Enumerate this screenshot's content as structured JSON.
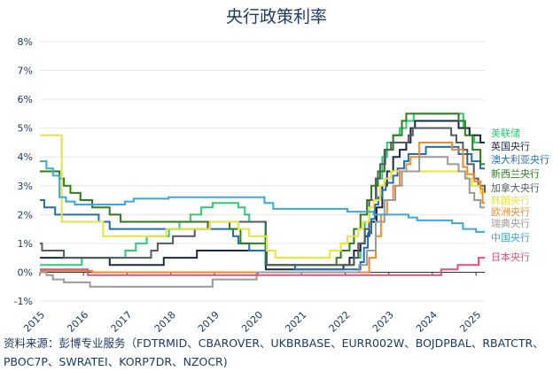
{
  "chart_data": {
    "type": "line",
    "title": "央行政策利率",
    "xlabel": "",
    "ylabel": "",
    "xlim": [
      2015,
      2025.2
    ],
    "ylim": [
      -1,
      8
    ],
    "yticks": [
      "-1%",
      "0%",
      "1%",
      "2%",
      "3%",
      "4%",
      "5%",
      "6%",
      "7%",
      "8%"
    ],
    "ytick_values": [
      -1,
      0,
      1,
      2,
      3,
      4,
      5,
      6,
      7,
      8
    ],
    "xticks": [
      "2015",
      "2016",
      "2017",
      "2018",
      "2019",
      "2020",
      "2021",
      "2022",
      "2023",
      "2024",
      "2025"
    ],
    "grid": true,
    "legend_position": "right",
    "series": [
      {
        "name": "美联储",
        "color": "#2ecc71",
        "points": [
          [
            2015,
            0.25
          ],
          [
            2015.96,
            0.5
          ],
          [
            2016.96,
            0.75
          ],
          [
            2017.2,
            1.0
          ],
          [
            2017.45,
            1.25
          ],
          [
            2017.96,
            1.5
          ],
          [
            2018.2,
            1.75
          ],
          [
            2018.45,
            2.0
          ],
          [
            2018.7,
            2.25
          ],
          [
            2018.96,
            2.4
          ],
          [
            2019.55,
            2.25
          ],
          [
            2019.7,
            2.0
          ],
          [
            2019.8,
            1.75
          ],
          [
            2020.17,
            0.25
          ],
          [
            2022.2,
            0.5
          ],
          [
            2022.35,
            1.0
          ],
          [
            2022.45,
            1.75
          ],
          [
            2022.55,
            2.5
          ],
          [
            2022.72,
            3.25
          ],
          [
            2022.85,
            4.0
          ],
          [
            2022.96,
            4.5
          ],
          [
            2023.1,
            4.75
          ],
          [
            2023.25,
            5.0
          ],
          [
            2023.4,
            5.25
          ],
          [
            2023.57,
            5.5
          ],
          [
            2024.71,
            5.0
          ],
          [
            2024.85,
            4.75
          ],
          [
            2024.96,
            4.5
          ]
        ]
      },
      {
        "name": "英国央行",
        "color": "#1a2a44",
        "points": [
          [
            2015,
            0.5
          ],
          [
            2016.6,
            0.25
          ],
          [
            2017.84,
            0.5
          ],
          [
            2018.6,
            0.75
          ],
          [
            2020.18,
            0.1
          ],
          [
            2021.96,
            0.25
          ],
          [
            2022.1,
            0.5
          ],
          [
            2022.2,
            0.75
          ],
          [
            2022.35,
            1.0
          ],
          [
            2022.45,
            1.25
          ],
          [
            2022.55,
            1.75
          ],
          [
            2022.72,
            2.25
          ],
          [
            2022.85,
            3.0
          ],
          [
            2022.96,
            3.5
          ],
          [
            2023.1,
            4.0
          ],
          [
            2023.25,
            4.25
          ],
          [
            2023.4,
            4.5
          ],
          [
            2023.5,
            5.0
          ],
          [
            2023.6,
            5.25
          ],
          [
            2024.6,
            5.0
          ],
          [
            2024.85,
            4.75
          ],
          [
            2025.1,
            4.5
          ]
        ]
      },
      {
        "name": "澳大利亚央行",
        "color": "#1f6fb5",
        "points": [
          [
            2015,
            2.5
          ],
          [
            2015.1,
            2.25
          ],
          [
            2015.35,
            2.0
          ],
          [
            2016.35,
            1.75
          ],
          [
            2016.6,
            1.5
          ],
          [
            2019.43,
            1.25
          ],
          [
            2019.55,
            1.0
          ],
          [
            2019.8,
            0.75
          ],
          [
            2020.2,
            0.25
          ],
          [
            2020.85,
            0.1
          ],
          [
            2022.35,
            0.35
          ],
          [
            2022.43,
            0.85
          ],
          [
            2022.52,
            1.35
          ],
          [
            2022.6,
            1.85
          ],
          [
            2022.68,
            2.35
          ],
          [
            2022.76,
            2.6
          ],
          [
            2022.85,
            2.85
          ],
          [
            2022.93,
            3.1
          ],
          [
            2023.1,
            3.35
          ],
          [
            2023.2,
            3.6
          ],
          [
            2023.35,
            3.85
          ],
          [
            2023.45,
            4.1
          ],
          [
            2023.85,
            4.35
          ],
          [
            2024.6,
            4.1
          ],
          [
            2024.9,
            3.85
          ],
          [
            2025.1,
            3.6
          ]
        ]
      },
      {
        "name": "新西兰央行",
        "color": "#2e7d1a",
        "points": [
          [
            2015,
            3.5
          ],
          [
            2015.45,
            3.25
          ],
          [
            2015.55,
            3.0
          ],
          [
            2015.7,
            2.75
          ],
          [
            2015.93,
            2.5
          ],
          [
            2016.2,
            2.25
          ],
          [
            2016.6,
            2.0
          ],
          [
            2016.85,
            1.75
          ],
          [
            2019.35,
            1.5
          ],
          [
            2019.6,
            1.0
          ],
          [
            2020.2,
            0.25
          ],
          [
            2021.8,
            0.5
          ],
          [
            2021.9,
            0.75
          ],
          [
            2022.1,
            1.0
          ],
          [
            2022.2,
            1.5
          ],
          [
            2022.35,
            2.0
          ],
          [
            2022.5,
            2.5
          ],
          [
            2022.6,
            3.0
          ],
          [
            2022.75,
            3.5
          ],
          [
            2022.9,
            4.25
          ],
          [
            2023.1,
            4.75
          ],
          [
            2023.3,
            5.25
          ],
          [
            2023.4,
            5.5
          ],
          [
            2024.6,
            5.25
          ],
          [
            2024.75,
            4.75
          ],
          [
            2024.92,
            4.25
          ],
          [
            2025.1,
            3.75
          ]
        ]
      },
      {
        "name": "加拿大央行",
        "color": "#555a60",
        "points": [
          [
            2015,
            1.0
          ],
          [
            2015.05,
            0.75
          ],
          [
            2015.55,
            0.5
          ],
          [
            2017.55,
            0.75
          ],
          [
            2017.7,
            1.0
          ],
          [
            2018.05,
            1.25
          ],
          [
            2018.55,
            1.5
          ],
          [
            2018.85,
            1.75
          ],
          [
            2020.18,
            0.25
          ],
          [
            2022.2,
            0.5
          ],
          [
            2022.3,
            1.0
          ],
          [
            2022.45,
            1.5
          ],
          [
            2022.55,
            2.5
          ],
          [
            2022.7,
            3.25
          ],
          [
            2022.8,
            3.75
          ],
          [
            2022.92,
            4.25
          ],
          [
            2023.05,
            4.5
          ],
          [
            2023.45,
            4.75
          ],
          [
            2023.55,
            5.0
          ],
          [
            2024.43,
            4.75
          ],
          [
            2024.55,
            4.5
          ],
          [
            2024.7,
            4.25
          ],
          [
            2024.8,
            3.75
          ],
          [
            2024.95,
            3.25
          ],
          [
            2025.05,
            3.0
          ],
          [
            2025.2,
            2.75
          ]
        ]
      },
      {
        "name": "韩国央行",
        "color": "#e4e43a",
        "points": [
          [
            2015,
            4.75
          ],
          [
            2015.5,
            1.75
          ],
          [
            2016.45,
            1.25
          ],
          [
            2017.9,
            1.5
          ],
          [
            2018.9,
            1.75
          ],
          [
            2019.55,
            1.5
          ],
          [
            2019.8,
            1.25
          ],
          [
            2020.2,
            0.75
          ],
          [
            2020.4,
            0.5
          ],
          [
            2021.65,
            0.75
          ],
          [
            2021.9,
            1.0
          ],
          [
            2022.05,
            1.25
          ],
          [
            2022.3,
            1.5
          ],
          [
            2022.4,
            1.75
          ],
          [
            2022.55,
            2.25
          ],
          [
            2022.65,
            2.5
          ],
          [
            2022.8,
            3.0
          ],
          [
            2022.9,
            3.25
          ],
          [
            2023.05,
            3.5
          ],
          [
            2024.8,
            3.25
          ],
          [
            2024.9,
            3.0
          ],
          [
            2025.1,
            2.75
          ]
        ]
      },
      {
        "name": "欧洲央行",
        "color": "#f08a30",
        "points": [
          [
            2015,
            0.05
          ],
          [
            2016.2,
            0.0
          ],
          [
            2022.55,
            0.5
          ],
          [
            2022.7,
            1.25
          ],
          [
            2022.82,
            2.0
          ],
          [
            2022.96,
            2.5
          ],
          [
            2023.1,
            3.0
          ],
          [
            2023.25,
            3.5
          ],
          [
            2023.4,
            3.75
          ],
          [
            2023.5,
            4.0
          ],
          [
            2023.7,
            4.5
          ],
          [
            2024.45,
            4.25
          ],
          [
            2024.7,
            3.65
          ],
          [
            2024.8,
            3.4
          ],
          [
            2024.96,
            3.15
          ],
          [
            2025.1,
            2.9
          ],
          [
            2025.15,
            2.4
          ]
        ]
      },
      {
        "name": "瑞典央行",
        "color": "#9a9a9a",
        "points": [
          [
            2015,
            0.0
          ],
          [
            2015.15,
            -0.1
          ],
          [
            2015.3,
            -0.25
          ],
          [
            2015.55,
            -0.35
          ],
          [
            2016.15,
            -0.5
          ],
          [
            2018.96,
            -0.25
          ],
          [
            2019.97,
            0.0
          ],
          [
            2022.32,
            0.25
          ],
          [
            2022.5,
            0.75
          ],
          [
            2022.7,
            1.75
          ],
          [
            2022.9,
            2.5
          ],
          [
            2023.15,
            3.0
          ],
          [
            2023.3,
            3.5
          ],
          [
            2023.7,
            4.0
          ],
          [
            2024.35,
            3.75
          ],
          [
            2024.6,
            3.5
          ],
          [
            2024.75,
            3.25
          ],
          [
            2024.85,
            2.75
          ],
          [
            2024.96,
            2.5
          ],
          [
            2025.1,
            2.25
          ]
        ]
      },
      {
        "name": "中国央行",
        "color": "#3aa8dc",
        "points": [
          [
            2015,
            3.85
          ],
          [
            2015.15,
            3.6
          ],
          [
            2015.3,
            3.35
          ],
          [
            2015.45,
            2.6
          ],
          [
            2015.6,
            2.45
          ],
          [
            2015.8,
            2.35
          ],
          [
            2016.95,
            2.45
          ],
          [
            2017.15,
            2.55
          ],
          [
            2017.95,
            2.6
          ],
          [
            2020.15,
            2.4
          ],
          [
            2020.35,
            2.2
          ],
          [
            2022.05,
            2.1
          ],
          [
            2022.65,
            2.0
          ],
          [
            2023.45,
            1.9
          ],
          [
            2023.65,
            1.8
          ],
          [
            2024.45,
            1.7
          ],
          [
            2024.7,
            1.5
          ],
          [
            2025.0,
            1.4
          ]
        ]
      },
      {
        "name": "日本央行",
        "color": "#e0507a",
        "points": [
          [
            2015,
            0.1
          ],
          [
            2016.1,
            -0.1
          ],
          [
            2024.2,
            0.1
          ],
          [
            2024.58,
            0.25
          ],
          [
            2025.06,
            0.5
          ]
        ]
      }
    ]
  },
  "source": {
    "line1": "资料来源：彭博专业服务（FDTRMID、CBAROVER、UKBRBASE、EURR002W、BOJDPBAL、RBATCTR、",
    "line2": "PBOC7P、SWRATEI、KORP7DR、NZOCR)"
  }
}
